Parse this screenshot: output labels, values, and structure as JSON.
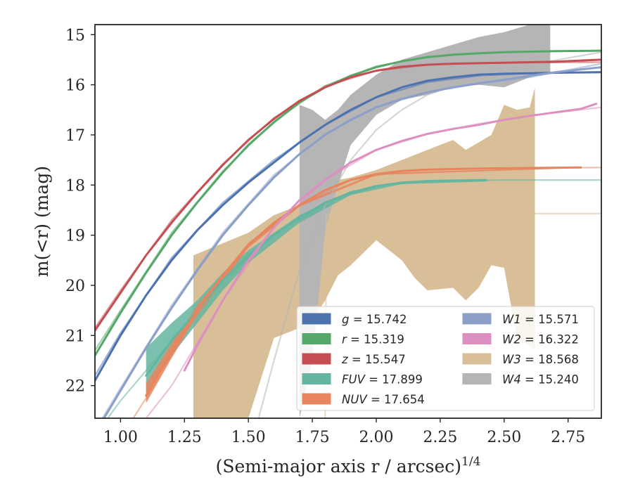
{
  "chart_data": {
    "type": "line",
    "xlabel": "(Semi-major axis r / arcsec)",
    "xlabel_superscript": "1/4",
    "ylabel": "m(<r) (mag)",
    "xlim": [
      0.9,
      2.88
    ],
    "ylim": [
      22.65,
      14.8
    ],
    "y_inverted": true,
    "grid": false,
    "legend_position": "lower-right",
    "x_ticks": [
      1.0,
      1.25,
      1.5,
      1.75,
      2.0,
      2.25,
      2.5,
      2.75
    ],
    "x_tick_labels": [
      "1.00",
      "1.25",
      "1.50",
      "1.75",
      "2.00",
      "2.25",
      "2.50",
      "2.75"
    ],
    "y_ticks": [
      15,
      16,
      17,
      18,
      19,
      20,
      21,
      22
    ],
    "y_tick_labels": [
      "15",
      "16",
      "17",
      "18",
      "19",
      "20",
      "21",
      "22"
    ],
    "series": [
      {
        "name": "g = 15.742",
        "color": "#4c72b0",
        "line": [
          [
            0.9,
            21.9
          ],
          [
            1.0,
            21.0
          ],
          [
            1.1,
            20.2
          ],
          [
            1.2,
            19.5
          ],
          [
            1.3,
            18.9
          ],
          [
            1.4,
            18.4
          ],
          [
            1.5,
            17.95
          ],
          [
            1.6,
            17.55
          ],
          [
            1.7,
            17.15
          ],
          [
            1.8,
            16.8
          ],
          [
            1.9,
            16.5
          ],
          [
            2.0,
            16.25
          ],
          [
            2.1,
            16.05
          ],
          [
            2.2,
            15.92
          ],
          [
            2.3,
            15.85
          ],
          [
            2.4,
            15.8
          ],
          [
            2.5,
            15.78
          ],
          [
            2.6,
            15.77
          ],
          [
            2.7,
            15.76
          ],
          [
            2.88,
            15.75
          ]
        ],
        "model": [
          [
            0.9,
            21.8
          ],
          [
            1.0,
            20.95
          ],
          [
            1.2,
            19.45
          ],
          [
            1.4,
            18.35
          ],
          [
            1.6,
            17.5
          ],
          [
            1.8,
            16.8
          ],
          [
            2.0,
            16.25
          ],
          [
            2.2,
            15.95
          ],
          [
            2.4,
            15.82
          ],
          [
            2.6,
            15.77
          ],
          [
            2.88,
            15.74
          ]
        ]
      },
      {
        "name": "r = 15.319",
        "color": "#55a868",
        "line": [
          [
            0.9,
            21.4
          ],
          [
            1.0,
            20.55
          ],
          [
            1.1,
            19.75
          ],
          [
            1.2,
            19.0
          ],
          [
            1.3,
            18.35
          ],
          [
            1.4,
            17.75
          ],
          [
            1.5,
            17.2
          ],
          [
            1.6,
            16.75
          ],
          [
            1.7,
            16.35
          ],
          [
            1.8,
            16.05
          ],
          [
            1.9,
            15.82
          ],
          [
            2.0,
            15.65
          ],
          [
            2.1,
            15.53
          ],
          [
            2.2,
            15.45
          ],
          [
            2.3,
            15.4
          ],
          [
            2.4,
            15.37
          ],
          [
            2.5,
            15.35
          ],
          [
            2.6,
            15.34
          ],
          [
            2.7,
            15.33
          ],
          [
            2.88,
            15.32
          ]
        ],
        "model": [
          [
            0.9,
            21.3
          ],
          [
            1.0,
            20.5
          ],
          [
            1.2,
            18.95
          ],
          [
            1.4,
            17.72
          ],
          [
            1.6,
            16.73
          ],
          [
            1.8,
            16.02
          ],
          [
            2.0,
            15.63
          ],
          [
            2.2,
            15.44
          ],
          [
            2.5,
            15.35
          ],
          [
            2.88,
            15.32
          ]
        ]
      },
      {
        "name": "z = 15.547",
        "color": "#c44e52",
        "line": [
          [
            0.9,
            20.9
          ],
          [
            1.0,
            20.15
          ],
          [
            1.1,
            19.4
          ],
          [
            1.2,
            18.75
          ],
          [
            1.3,
            18.15
          ],
          [
            1.4,
            17.6
          ],
          [
            1.5,
            17.1
          ],
          [
            1.6,
            16.68
          ],
          [
            1.7,
            16.32
          ],
          [
            1.8,
            16.05
          ],
          [
            1.9,
            15.85
          ],
          [
            2.0,
            15.72
          ],
          [
            2.1,
            15.64
          ],
          [
            2.2,
            15.6
          ],
          [
            2.3,
            15.58
          ],
          [
            2.4,
            15.57
          ],
          [
            2.5,
            15.56
          ],
          [
            2.6,
            15.55
          ],
          [
            2.7,
            15.54
          ],
          [
            2.88,
            15.5
          ]
        ],
        "model": [
          [
            0.9,
            20.85
          ],
          [
            1.0,
            20.1
          ],
          [
            1.2,
            18.7
          ],
          [
            1.4,
            17.58
          ],
          [
            1.6,
            16.66
          ],
          [
            1.8,
            16.03
          ],
          [
            2.0,
            15.72
          ],
          [
            2.2,
            15.6
          ],
          [
            2.5,
            15.56
          ],
          [
            2.88,
            15.55
          ]
        ]
      },
      {
        "name": "FUV = 17.899",
        "color": "#64b5a0",
        "line": [
          [
            1.1,
            21.8
          ],
          [
            1.2,
            21.1
          ],
          [
            1.3,
            20.5
          ],
          [
            1.4,
            19.9
          ],
          [
            1.5,
            19.4
          ],
          [
            1.6,
            19.0
          ],
          [
            1.7,
            18.65
          ],
          [
            1.8,
            18.35
          ],
          [
            1.9,
            18.15
          ],
          [
            2.0,
            18.02
          ],
          [
            2.1,
            17.95
          ],
          [
            2.2,
            17.92
          ],
          [
            2.3,
            17.91
          ],
          [
            2.43,
            17.9
          ]
        ],
        "band": [
          [
            1.1,
            21.25,
            22.15
          ],
          [
            1.2,
            20.75,
            21.4
          ],
          [
            1.3,
            20.3,
            20.75
          ],
          [
            1.4,
            19.75,
            20.1
          ],
          [
            1.5,
            19.3,
            19.55
          ],
          [
            1.7,
            18.6,
            18.75
          ],
          [
            1.9,
            18.12,
            18.2
          ],
          [
            2.1,
            17.93,
            17.98
          ],
          [
            2.43,
            17.88,
            17.93
          ]
        ],
        "model": [
          [
            0.95,
            22.65
          ],
          [
            1.0,
            22.3
          ],
          [
            1.2,
            21.1
          ],
          [
            1.4,
            19.9
          ],
          [
            1.6,
            19.0
          ],
          [
            1.8,
            18.35
          ],
          [
            2.0,
            18.02
          ],
          [
            2.2,
            17.92
          ],
          [
            2.5,
            17.9
          ],
          [
            2.88,
            17.9
          ]
        ]
      },
      {
        "name": "NUV = 17.654",
        "color": "#e8855f",
        "line": [
          [
            1.1,
            22.2
          ],
          [
            1.2,
            21.3
          ],
          [
            1.3,
            20.5
          ],
          [
            1.4,
            19.8
          ],
          [
            1.5,
            19.2
          ],
          [
            1.6,
            18.75
          ],
          [
            1.7,
            18.4
          ],
          [
            1.8,
            18.1
          ],
          [
            1.9,
            17.9
          ],
          [
            2.0,
            17.78
          ],
          [
            2.1,
            17.72
          ],
          [
            2.2,
            17.69
          ],
          [
            2.4,
            17.67
          ],
          [
            2.6,
            17.66
          ],
          [
            2.8,
            17.65
          ]
        ],
        "band": [
          [
            1.1,
            21.95,
            22.35
          ],
          [
            1.2,
            21.15,
            21.45
          ],
          [
            1.3,
            20.4,
            20.6
          ],
          [
            1.5,
            19.15,
            19.25
          ],
          [
            1.7,
            18.37,
            18.43
          ],
          [
            2.0,
            17.76,
            17.8
          ],
          [
            2.8,
            17.64,
            17.66
          ]
        ],
        "model": [
          [
            1.05,
            22.65
          ],
          [
            1.1,
            22.25
          ],
          [
            1.3,
            20.5
          ],
          [
            1.5,
            19.2
          ],
          [
            1.7,
            18.4
          ],
          [
            1.9,
            17.9
          ],
          [
            2.1,
            17.72
          ],
          [
            2.4,
            17.67
          ],
          [
            2.88,
            17.65
          ]
        ]
      },
      {
        "name": "W1 = 15.571",
        "color": "#8c9fc9",
        "line": [
          [
            0.9,
            22.95
          ],
          [
            1.0,
            22.1
          ],
          [
            1.1,
            21.25
          ],
          [
            1.2,
            20.45
          ],
          [
            1.3,
            19.7
          ],
          [
            1.4,
            19.0
          ],
          [
            1.5,
            18.4
          ],
          [
            1.6,
            17.85
          ],
          [
            1.7,
            17.38
          ],
          [
            1.8,
            17.0
          ],
          [
            1.9,
            16.7
          ],
          [
            2.0,
            16.45
          ],
          [
            2.1,
            16.28
          ],
          [
            2.2,
            16.15
          ],
          [
            2.3,
            16.05
          ],
          [
            2.4,
            15.97
          ],
          [
            2.5,
            15.9
          ],
          [
            2.6,
            15.82
          ],
          [
            2.7,
            15.75
          ],
          [
            2.88,
            15.65
          ]
        ],
        "model": [
          [
            0.9,
            22.9
          ],
          [
            1.0,
            22.05
          ],
          [
            1.2,
            20.4
          ],
          [
            1.4,
            18.95
          ],
          [
            1.6,
            17.8
          ],
          [
            1.8,
            16.98
          ],
          [
            2.0,
            16.45
          ],
          [
            2.2,
            16.15
          ],
          [
            2.4,
            15.98
          ],
          [
            2.6,
            15.85
          ],
          [
            2.88,
            15.58
          ]
        ]
      },
      {
        "name": "W2 = 16.322",
        "color": "#dd8fbf",
        "line": [
          [
            1.25,
            21.7
          ],
          [
            1.3,
            21.2
          ],
          [
            1.4,
            20.3
          ],
          [
            1.5,
            19.5
          ],
          [
            1.6,
            18.85
          ],
          [
            1.7,
            18.3
          ],
          [
            1.8,
            17.9
          ],
          [
            1.9,
            17.55
          ],
          [
            2.0,
            17.3
          ],
          [
            2.1,
            17.12
          ],
          [
            2.2,
            16.98
          ],
          [
            2.3,
            16.88
          ],
          [
            2.4,
            16.8
          ],
          [
            2.5,
            16.7
          ],
          [
            2.6,
            16.62
          ],
          [
            2.7,
            16.55
          ],
          [
            2.8,
            16.48
          ],
          [
            2.86,
            16.38
          ]
        ],
        "model": [
          [
            1.1,
            22.65
          ],
          [
            1.2,
            22.0
          ],
          [
            1.4,
            20.3
          ],
          [
            1.6,
            18.85
          ],
          [
            1.8,
            17.9
          ],
          [
            2.0,
            17.3
          ],
          [
            2.2,
            16.98
          ],
          [
            2.4,
            16.78
          ],
          [
            2.6,
            16.62
          ],
          [
            2.88,
            16.45
          ]
        ]
      },
      {
        "name": "W3 = 18.568",
        "color": "#d8bf98",
        "band": [
          [
            1.285,
            19.4,
            22.65
          ],
          [
            1.5,
            18.95,
            22.65
          ],
          [
            1.6,
            18.6,
            21.05
          ],
          [
            1.7,
            18.4,
            20.85
          ],
          [
            1.75,
            18.3,
            20.7
          ],
          [
            1.8,
            18.1,
            20.3
          ],
          [
            1.85,
            17.9,
            19.8
          ],
          [
            1.9,
            17.85,
            19.6
          ],
          [
            2.0,
            17.7,
            19.1
          ],
          [
            2.1,
            17.5,
            19.5
          ],
          [
            2.15,
            17.4,
            19.85
          ],
          [
            2.2,
            17.3,
            20.1
          ],
          [
            2.3,
            17.1,
            20.05
          ],
          [
            2.35,
            17.3,
            20.3
          ],
          [
            2.4,
            17.15,
            20.05
          ],
          [
            2.45,
            17.0,
            19.6
          ],
          [
            2.5,
            16.4,
            19.65
          ],
          [
            2.55,
            16.5,
            21.05
          ],
          [
            2.6,
            16.45,
            21.2
          ],
          [
            2.62,
            16.05,
            21.3
          ]
        ],
        "model": [
          [
            1.8,
            22.65
          ],
          [
            1.805,
            18.6
          ],
          [
            1.82,
            18.57
          ],
          [
            2.88,
            18.57
          ]
        ]
      },
      {
        "name": "W4 = 15.240",
        "color": "#b5b5b5",
        "band": [
          [
            1.7,
            16.4,
            22.65
          ],
          [
            1.75,
            16.5,
            21.5
          ],
          [
            1.8,
            16.7,
            18.9
          ],
          [
            1.85,
            16.5,
            18.0
          ],
          [
            1.9,
            16.2,
            17.2
          ],
          [
            2.0,
            15.8,
            16.6
          ],
          [
            2.1,
            15.5,
            16.3
          ],
          [
            2.2,
            15.35,
            16.2
          ],
          [
            2.3,
            15.2,
            16.05
          ],
          [
            2.4,
            15.05,
            16.0
          ],
          [
            2.5,
            14.95,
            16.05
          ],
          [
            2.6,
            14.8,
            15.85
          ],
          [
            2.68,
            14.6,
            15.75
          ]
        ],
        "model": [
          [
            1.54,
            22.65
          ],
          [
            1.6,
            21.5
          ],
          [
            1.7,
            19.7
          ],
          [
            1.8,
            18.4
          ],
          [
            1.9,
            17.5
          ],
          [
            2.0,
            16.9
          ],
          [
            2.1,
            16.5
          ],
          [
            2.2,
            16.2
          ],
          [
            2.4,
            15.85
          ],
          [
            2.6,
            15.6
          ],
          [
            2.88,
            15.35
          ]
        ]
      }
    ],
    "legend": {
      "columns": [
        [
          "g = 15.742",
          "r = 15.319",
          "z = 15.547",
          "FUV = 17.899",
          "NUV = 17.654"
        ],
        [
          "W1 = 15.571",
          "W2 = 16.322",
          "W3 = 18.568",
          "W4 = 15.240"
        ]
      ]
    }
  }
}
